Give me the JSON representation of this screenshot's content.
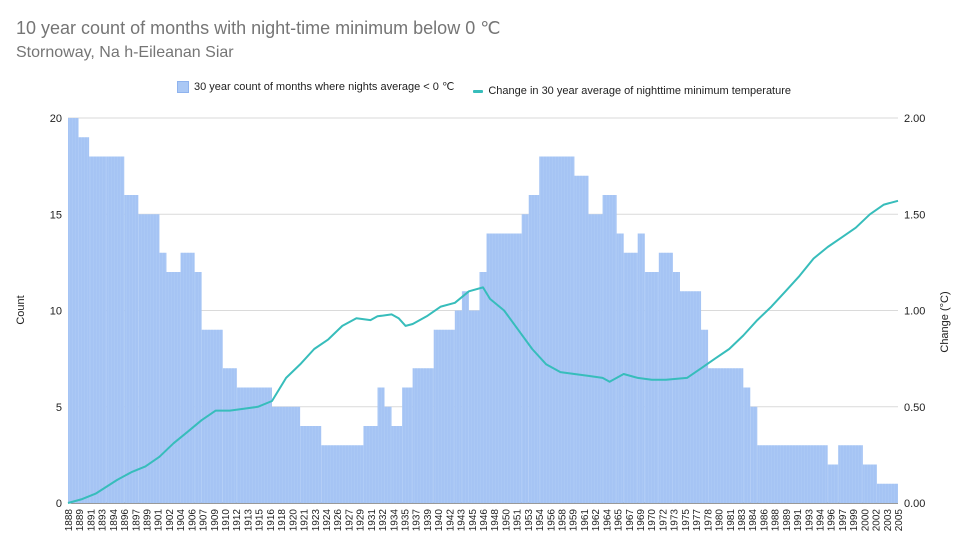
{
  "title": "10 year count of months with night-time minimum below 0 ℃",
  "subtitle": "Stornoway, Na h-Eileanan Siar",
  "colors": {
    "bars": "#aac8f5",
    "bar_edge": "#8fb3ee",
    "line": "#37bdbb",
    "grid": "#dadada",
    "axis_text": "#222222"
  },
  "chart_data": {
    "type": "bar",
    "title": "10 year count of months with night-time minimum below 0 ℃",
    "subtitle": "Stornoway, Na h-Eileanan Siar",
    "ylabel": "Count",
    "y2label": "Change (°C)",
    "ylim": [
      0,
      20
    ],
    "y2lim": [
      0,
      2
    ],
    "yticks": [
      "0",
      "5",
      "10",
      "15",
      "20"
    ],
    "y2ticks": [
      "0.00",
      "0.50",
      "1.00",
      "1.50",
      "2.00"
    ],
    "grid": true,
    "legend_position": "top",
    "x_years": [
      1888,
      2006
    ],
    "xtick_labels": [
      "1888",
      "1889",
      "1891",
      "1893",
      "1894",
      "1896",
      "1897",
      "1899",
      "1901",
      "1902",
      "1904",
      "1906",
      "1907",
      "1909",
      "1910",
      "1912",
      "1913",
      "1915",
      "1916",
      "1918",
      "1920",
      "1921",
      "1923",
      "1924",
      "1926",
      "1927",
      "1929",
      "1931",
      "1932",
      "1934",
      "1935",
      "1937",
      "1939",
      "1940",
      "1942",
      "1943",
      "1945",
      "1946",
      "1948",
      "1950",
      "1951",
      "1953",
      "1954",
      "1956",
      "1958",
      "1959",
      "1961",
      "1962",
      "1964",
      "1965",
      "1967",
      "1969",
      "1970",
      "1972",
      "1973",
      "1975",
      "1977",
      "1978",
      "1980",
      "1981",
      "1983",
      "1984",
      "1986",
      "1988",
      "1989",
      "1991",
      "1993",
      "1994",
      "1996",
      "1997",
      "1999",
      "2000",
      "2002",
      "2003",
      "2005"
    ],
    "series": [
      {
        "name": "30 year count of months where nights average < 0 ℃",
        "type": "bar",
        "axis": "left",
        "steps": [
          [
            1888,
            20
          ],
          [
            1889.5,
            19
          ],
          [
            1891,
            18
          ],
          [
            1893.5,
            18
          ],
          [
            1896,
            16
          ],
          [
            1898,
            15
          ],
          [
            1901,
            13
          ],
          [
            1902,
            12
          ],
          [
            1904,
            13
          ],
          [
            1906,
            12
          ],
          [
            1907,
            9
          ],
          [
            1910,
            7
          ],
          [
            1912,
            6
          ],
          [
            1917,
            5
          ],
          [
            1921,
            4
          ],
          [
            1924,
            3
          ],
          [
            1930,
            4
          ],
          [
            1932,
            6
          ],
          [
            1933,
            5
          ],
          [
            1934,
            4
          ],
          [
            1935.5,
            6
          ],
          [
            1937,
            7
          ],
          [
            1940,
            9
          ],
          [
            1943,
            10
          ],
          [
            1944,
            11
          ],
          [
            1945,
            10
          ],
          [
            1946.5,
            12
          ],
          [
            1947.5,
            14
          ],
          [
            1952.5,
            15
          ],
          [
            1953.5,
            16
          ],
          [
            1955,
            18
          ],
          [
            1960,
            17
          ],
          [
            1962,
            15
          ],
          [
            1964,
            16
          ],
          [
            1966,
            14
          ],
          [
            1967,
            13
          ],
          [
            1969,
            14
          ],
          [
            1970,
            12
          ],
          [
            1972,
            13
          ],
          [
            1974,
            12
          ],
          [
            1975,
            11
          ],
          [
            1978,
            9
          ],
          [
            1979,
            7
          ],
          [
            1984,
            6
          ],
          [
            1985,
            5
          ],
          [
            1986,
            3
          ],
          [
            1996,
            2
          ],
          [
            1997.5,
            3
          ],
          [
            2001,
            2
          ],
          [
            2003,
            1
          ],
          [
            2006,
            1
          ]
        ]
      },
      {
        "name": "Change in 30 year average of nighttime minimum temperature",
        "type": "line",
        "axis": "right",
        "points": [
          [
            1888,
            0.0
          ],
          [
            1890,
            0.02
          ],
          [
            1892,
            0.05
          ],
          [
            1895,
            0.12
          ],
          [
            1897,
            0.16
          ],
          [
            1899,
            0.19
          ],
          [
            1901,
            0.24
          ],
          [
            1903,
            0.31
          ],
          [
            1905,
            0.37
          ],
          [
            1907,
            0.43
          ],
          [
            1909,
            0.48
          ],
          [
            1911,
            0.48
          ],
          [
            1913,
            0.49
          ],
          [
            1915,
            0.5
          ],
          [
            1917,
            0.53
          ],
          [
            1919,
            0.65
          ],
          [
            1921,
            0.72
          ],
          [
            1923,
            0.8
          ],
          [
            1925,
            0.85
          ],
          [
            1927,
            0.92
          ],
          [
            1929,
            0.96
          ],
          [
            1931,
            0.95
          ],
          [
            1932,
            0.97
          ],
          [
            1934,
            0.98
          ],
          [
            1935,
            0.96
          ],
          [
            1936,
            0.92
          ],
          [
            1937,
            0.93
          ],
          [
            1939,
            0.97
          ],
          [
            1941,
            1.02
          ],
          [
            1943,
            1.04
          ],
          [
            1945,
            1.1
          ],
          [
            1947,
            1.12
          ],
          [
            1948,
            1.06
          ],
          [
            1950,
            1.0
          ],
          [
            1952,
            0.9
          ],
          [
            1954,
            0.8
          ],
          [
            1956,
            0.72
          ],
          [
            1958,
            0.68
          ],
          [
            1960,
            0.67
          ],
          [
            1962,
            0.66
          ],
          [
            1964,
            0.65
          ],
          [
            1965,
            0.63
          ],
          [
            1967,
            0.67
          ],
          [
            1969,
            0.65
          ],
          [
            1971,
            0.64
          ],
          [
            1973,
            0.64
          ],
          [
            1976,
            0.65
          ],
          [
            1978,
            0.7
          ],
          [
            1980,
            0.75
          ],
          [
            1982,
            0.8
          ],
          [
            1984,
            0.87
          ],
          [
            1986,
            0.95
          ],
          [
            1988,
            1.02
          ],
          [
            1990,
            1.1
          ],
          [
            1992,
            1.18
          ],
          [
            1994,
            1.27
          ],
          [
            1996,
            1.33
          ],
          [
            1998,
            1.38
          ],
          [
            2000,
            1.43
          ],
          [
            2002,
            1.5
          ],
          [
            2004,
            1.55
          ],
          [
            2006,
            1.57
          ]
        ]
      }
    ]
  }
}
